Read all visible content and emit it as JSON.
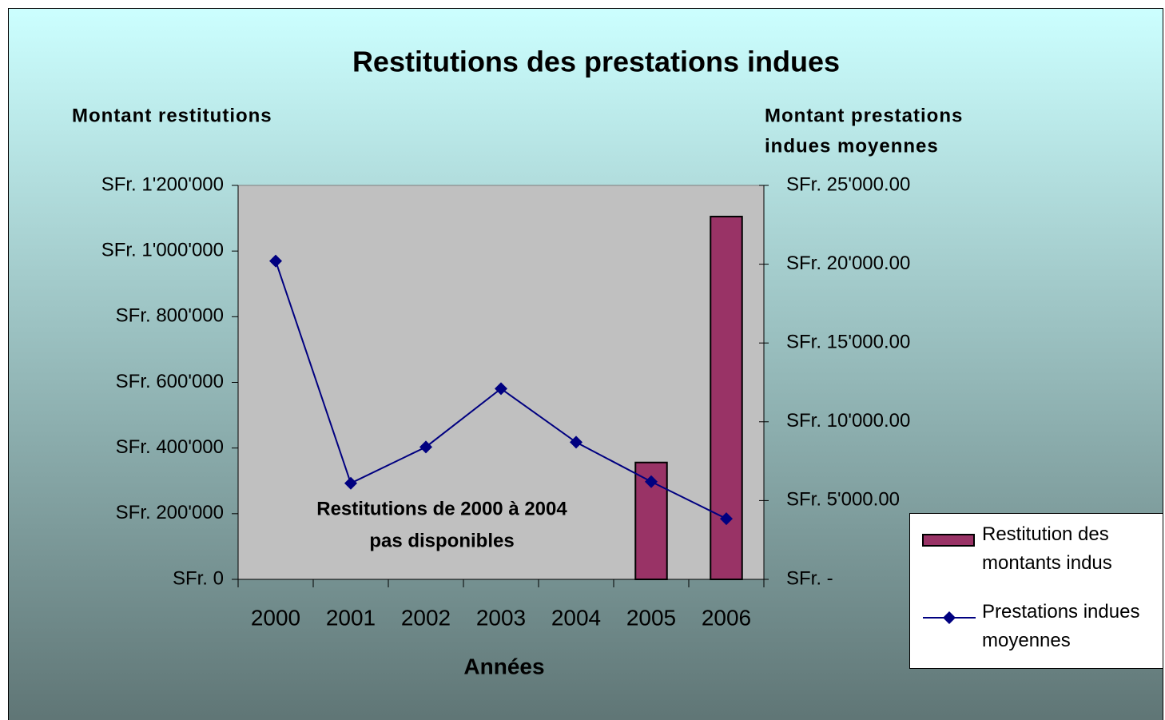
{
  "chart_data": {
    "type": "bar",
    "title": "Restitutions des prestations indues",
    "ylabel": "Montant restitutions",
    "y2label": [
      "Montant prestations",
      "indues moyennes"
    ],
    "xlabel": "Années",
    "annotation": [
      "Restitutions de 2000 à 2004",
      "pas disponibles"
    ],
    "categories": [
      "2000",
      "2001",
      "2002",
      "2003",
      "2004",
      "2005",
      "2006"
    ],
    "series": [
      {
        "name": "Restitution des montants indus",
        "type": "bar",
        "color": "#993366",
        "values": [
          null,
          null,
          null,
          null,
          null,
          356000,
          1105000
        ]
      },
      {
        "name": "Prestations indues moyennes",
        "type": "line",
        "color": "#000080",
        "axis": "y2",
        "values": [
          20200,
          6100,
          8400,
          12100,
          8700,
          6200,
          3850
        ]
      }
    ],
    "ylim": [
      0,
      1200000
    ],
    "yticks": [
      {
        "value": 0,
        "label": "SFr. 0"
      },
      {
        "value": 200000,
        "label": "SFr. 200'000"
      },
      {
        "value": 400000,
        "label": "SFr. 400'000"
      },
      {
        "value": 600000,
        "label": "SFr. 600'000"
      },
      {
        "value": 800000,
        "label": "SFr. 800'000"
      },
      {
        "value": 1000000,
        "label": "SFr. 1'000'000"
      },
      {
        "value": 1200000,
        "label": "SFr. 1'200'000"
      }
    ],
    "y2lim": [
      0,
      25000
    ],
    "y2ticks": [
      {
        "value": 0,
        "label": "SFr. -"
      },
      {
        "value": 5000,
        "label": "SFr. 5'000.00"
      },
      {
        "value": 10000,
        "label": "SFr. 10'000.00"
      },
      {
        "value": 15000,
        "label": "SFr. 15'000.00"
      },
      {
        "value": 20000,
        "label": "SFr. 20'000.00"
      },
      {
        "value": 25000,
        "label": "SFr. 25'000.00"
      }
    ],
    "grid": false,
    "legend": "right"
  }
}
